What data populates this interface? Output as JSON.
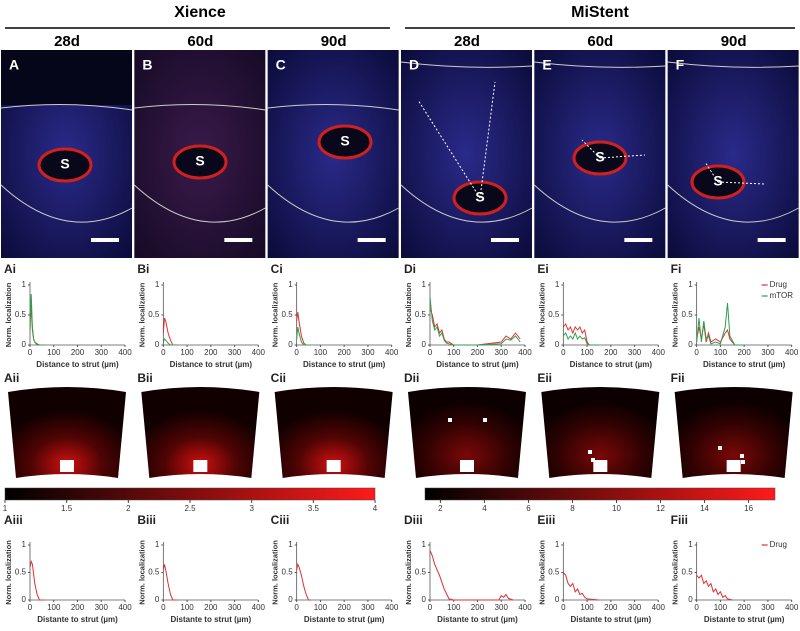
{
  "groups": [
    "Xience",
    "MiStent"
  ],
  "columns": [
    "28d",
    "60d",
    "90d",
    "28d",
    "60d",
    "90d"
  ],
  "images": [
    {
      "label": "A",
      "strut": "S"
    },
    {
      "label": "B",
      "strut": "S"
    },
    {
      "label": "C",
      "strut": "S"
    },
    {
      "label": "D",
      "strut": "S"
    },
    {
      "label": "E",
      "strut": "S"
    },
    {
      "label": "F",
      "strut": "S"
    }
  ],
  "heatmaps": [
    "Aii",
    "Bii",
    "Cii",
    "Dii",
    "Eii",
    "Fii"
  ],
  "chart_data": [
    {
      "type": "line",
      "panel": "Ai",
      "ylabel": "Norm. localization",
      "xlabel": "Distance to strut (µm)",
      "xlim": [
        0,
        400
      ],
      "xticks": [
        0,
        100,
        200,
        300,
        400
      ],
      "ylim": [
        0,
        1
      ],
      "yticks": [
        0,
        0.5,
        1
      ],
      "x": [
        0,
        5,
        10,
        15,
        20,
        30,
        40,
        60
      ],
      "series": [
        {
          "color": "#e03030",
          "values": [
            0.5,
            0.6,
            0.25,
            0.1,
            0.05,
            0.02,
            0,
            0
          ]
        },
        {
          "color": "#2e9e4a",
          "values": [
            0.2,
            0.85,
            0.3,
            0.1,
            0.05,
            0,
            0,
            0
          ]
        }
      ]
    },
    {
      "type": "line",
      "panel": "Bi",
      "ylabel": "Norm. localization",
      "xlabel": "Distance to strut (µm)",
      "xlim": [
        0,
        400
      ],
      "xticks": [
        0,
        100,
        200,
        300,
        400
      ],
      "ylim": [
        0,
        1
      ],
      "yticks": [
        0,
        0.5,
        1
      ],
      "x": [
        0,
        5,
        10,
        20,
        30,
        40,
        60
      ],
      "series": [
        {
          "color": "#e03030",
          "values": [
            0.2,
            0.45,
            0.4,
            0.2,
            0.08,
            0,
            0
          ]
        },
        {
          "color": "#2e9e4a",
          "values": [
            0.05,
            0.1,
            0.08,
            0.03,
            0,
            0,
            0
          ]
        }
      ]
    },
    {
      "type": "line",
      "panel": "Ci",
      "ylabel": "Norm. localization",
      "xlabel": "Distance to strut (µm)",
      "xlim": [
        0,
        400
      ],
      "xticks": [
        0,
        100,
        200,
        300,
        400
      ],
      "ylim": [
        0,
        1
      ],
      "yticks": [
        0,
        0.5,
        1
      ],
      "x": [
        0,
        5,
        10,
        20,
        30,
        40,
        60
      ],
      "series": [
        {
          "color": "#e03030",
          "values": [
            0.4,
            0.55,
            0.4,
            0.15,
            0.03,
            0,
            0
          ]
        },
        {
          "color": "#2e9e4a",
          "values": [
            0.1,
            0.3,
            0.2,
            0.05,
            0,
            0,
            0
          ]
        }
      ]
    },
    {
      "type": "line",
      "panel": "Di",
      "ylabel": "Norm. localization",
      "xlabel": "Distance to strut (µm)",
      "xlim": [
        0,
        400
      ],
      "xticks": [
        0,
        100,
        200,
        300,
        400
      ],
      "ylim": [
        0,
        1
      ],
      "yticks": [
        0,
        0.5,
        1
      ],
      "x": [
        0,
        10,
        20,
        30,
        40,
        50,
        60,
        70,
        80,
        100,
        200,
        300,
        320,
        340,
        360,
        380
      ],
      "series": [
        {
          "color": "#e03030",
          "values": [
            0.6,
            0.5,
            0.3,
            0.35,
            0.2,
            0.25,
            0.1,
            0.05,
            0.05,
            0,
            0,
            0.05,
            0.15,
            0.1,
            0.2,
            0.1
          ]
        },
        {
          "color": "#2e9e4a",
          "values": [
            0.8,
            0.4,
            0.25,
            0.3,
            0.15,
            0.2,
            0.08,
            0.03,
            0.02,
            0,
            0,
            0.02,
            0.1,
            0.08,
            0.15,
            0.05
          ]
        }
      ]
    },
    {
      "type": "line",
      "panel": "Ei",
      "ylabel": "Norm. localization",
      "xlabel": "Distance to strut (µm)",
      "xlim": [
        0,
        400
      ],
      "xticks": [
        0,
        100,
        200,
        300,
        400
      ],
      "ylim": [
        0,
        1
      ],
      "yticks": [
        0,
        0.5,
        1
      ],
      "x": [
        0,
        10,
        20,
        30,
        40,
        50,
        60,
        70,
        80,
        90,
        100,
        110,
        150
      ],
      "series": [
        {
          "color": "#e03030",
          "values": [
            0.3,
            0.35,
            0.25,
            0.3,
            0.2,
            0.3,
            0.25,
            0.3,
            0.2,
            0.25,
            0.05,
            0,
            0
          ]
        },
        {
          "color": "#2e9e4a",
          "values": [
            0.15,
            0.2,
            0.1,
            0.15,
            0.1,
            0.2,
            0.1,
            0.15,
            0.1,
            0.12,
            0.02,
            0,
            0
          ]
        }
      ]
    },
    {
      "type": "line",
      "panel": "Fi",
      "ylabel": "Norm. localization",
      "xlabel": "Distance to strut (µm)",
      "xlim": [
        0,
        400
      ],
      "xticks": [
        0,
        100,
        200,
        300,
        400
      ],
      "ylim": [
        0,
        1
      ],
      "yticks": [
        0,
        0.5,
        1
      ],
      "legend": "upper right",
      "x": [
        0,
        10,
        20,
        30,
        40,
        50,
        60,
        80,
        100,
        120,
        130,
        140,
        160,
        200
      ],
      "series": [
        {
          "name": "Drug",
          "color": "#e03030",
          "values": [
            0.1,
            0.3,
            0.1,
            0.35,
            0.05,
            0.2,
            0.05,
            0.1,
            0.05,
            0.2,
            0.25,
            0.1,
            0,
            0
          ]
        },
        {
          "name": "mTOR",
          "color": "#2e9e4a",
          "values": [
            0.05,
            0.45,
            0.05,
            0.4,
            0.1,
            0.15,
            0.02,
            0.05,
            0.02,
            0.3,
            0.7,
            0.15,
            0,
            0
          ]
        }
      ]
    },
    {
      "type": "line",
      "panel": "Aiii",
      "ylabel": "Norm. localization",
      "xlabel": "Distante to strut (µm)",
      "xlim": [
        0,
        400
      ],
      "xticks": [
        0,
        100,
        200,
        300,
        400
      ],
      "ylim": [
        0,
        1
      ],
      "yticks": [
        0,
        0.5,
        1
      ],
      "x": [
        0,
        5,
        10,
        20,
        30,
        40,
        60
      ],
      "series": [
        {
          "color": "#e03030",
          "values": [
            0.6,
            0.7,
            0.65,
            0.3,
            0.1,
            0,
            0
          ]
        }
      ]
    },
    {
      "type": "line",
      "panel": "Biii",
      "ylabel": "Norm. localization",
      "xlabel": "Distante to strut (µm)",
      "xlim": [
        0,
        400
      ],
      "xticks": [
        0,
        100,
        200,
        300,
        400
      ],
      "ylim": [
        0,
        1
      ],
      "yticks": [
        0,
        0.5,
        1
      ],
      "x": [
        0,
        5,
        10,
        20,
        30,
        40,
        60
      ],
      "series": [
        {
          "color": "#e03030",
          "values": [
            0.55,
            0.65,
            0.55,
            0.3,
            0.1,
            0,
            0
          ]
        }
      ]
    },
    {
      "type": "line",
      "panel": "Ciii",
      "ylabel": "Norm. localization",
      "xlabel": "Distante to strut (µm)",
      "xlim": [
        0,
        400
      ],
      "xticks": [
        0,
        100,
        200,
        300,
        400
      ],
      "ylim": [
        0,
        1
      ],
      "yticks": [
        0,
        0.5,
        1
      ],
      "x": [
        0,
        5,
        10,
        20,
        30,
        40,
        50,
        60
      ],
      "series": [
        {
          "color": "#e03030",
          "values": [
            0.55,
            0.65,
            0.6,
            0.45,
            0.25,
            0.1,
            0,
            0
          ]
        }
      ]
    },
    {
      "type": "line",
      "panel": "Diii",
      "ylabel": "Norm. localization",
      "xlabel": "Distante to strut (µm)",
      "xlim": [
        0,
        400
      ],
      "xticks": [
        0,
        100,
        200,
        300,
        400
      ],
      "ylim": [
        0,
        1
      ],
      "yticks": [
        0,
        0.5,
        1
      ],
      "x": [
        0,
        10,
        20,
        40,
        60,
        80,
        100,
        200,
        290,
        300,
        310,
        320,
        330,
        350
      ],
      "series": [
        {
          "color": "#e03030",
          "values": [
            0.9,
            0.8,
            0.65,
            0.45,
            0.2,
            0.02,
            0,
            0,
            0,
            0.08,
            0.05,
            0.1,
            0.03,
            0
          ]
        }
      ]
    },
    {
      "type": "line",
      "panel": "Eiii",
      "ylabel": "Norm. localization",
      "xlabel": "Distante to strut (µm)",
      "xlim": [
        0,
        400
      ],
      "xticks": [
        0,
        100,
        200,
        300,
        400
      ],
      "ylim": [
        0,
        1
      ],
      "yticks": [
        0,
        0.5,
        1
      ],
      "x": [
        0,
        10,
        20,
        30,
        40,
        50,
        60,
        70,
        80,
        90,
        100,
        150
      ],
      "series": [
        {
          "color": "#e03030",
          "values": [
            0.5,
            0.45,
            0.3,
            0.25,
            0.3,
            0.15,
            0.2,
            0.1,
            0.12,
            0.05,
            0.02,
            0
          ]
        }
      ]
    },
    {
      "type": "line",
      "panel": "Fiii",
      "ylabel": "Norm. localization",
      "xlabel": "Distante to strut (µm)",
      "xlim": [
        0,
        400
      ],
      "xticks": [
        0,
        100,
        200,
        300,
        400
      ],
      "ylim": [
        0,
        1
      ],
      "yticks": [
        0,
        0.5,
        1
      ],
      "legend": "upper right",
      "x": [
        0,
        10,
        20,
        30,
        40,
        50,
        60,
        70,
        80,
        90,
        100,
        110,
        120,
        130,
        150
      ],
      "series": [
        {
          "name": "Drug",
          "color": "#e03030",
          "values": [
            0.45,
            0.4,
            0.45,
            0.3,
            0.35,
            0.25,
            0.3,
            0.15,
            0.2,
            0.1,
            0.15,
            0.05,
            0.08,
            0.02,
            0
          ]
        }
      ]
    },
    {
      "type": "colorbar",
      "xlim": [
        1,
        4
      ],
      "xticks": [
        1,
        1.5,
        2,
        2.5,
        3,
        3.5,
        4
      ],
      "colors": [
        "#000000",
        "#ff1a1a"
      ]
    },
    {
      "type": "colorbar",
      "xlim": [
        1.3,
        17.2
      ],
      "xticks": [
        2,
        4,
        6,
        8,
        10,
        12,
        14,
        16
      ],
      "colors": [
        "#000000",
        "#ff1a1a"
      ]
    }
  ]
}
